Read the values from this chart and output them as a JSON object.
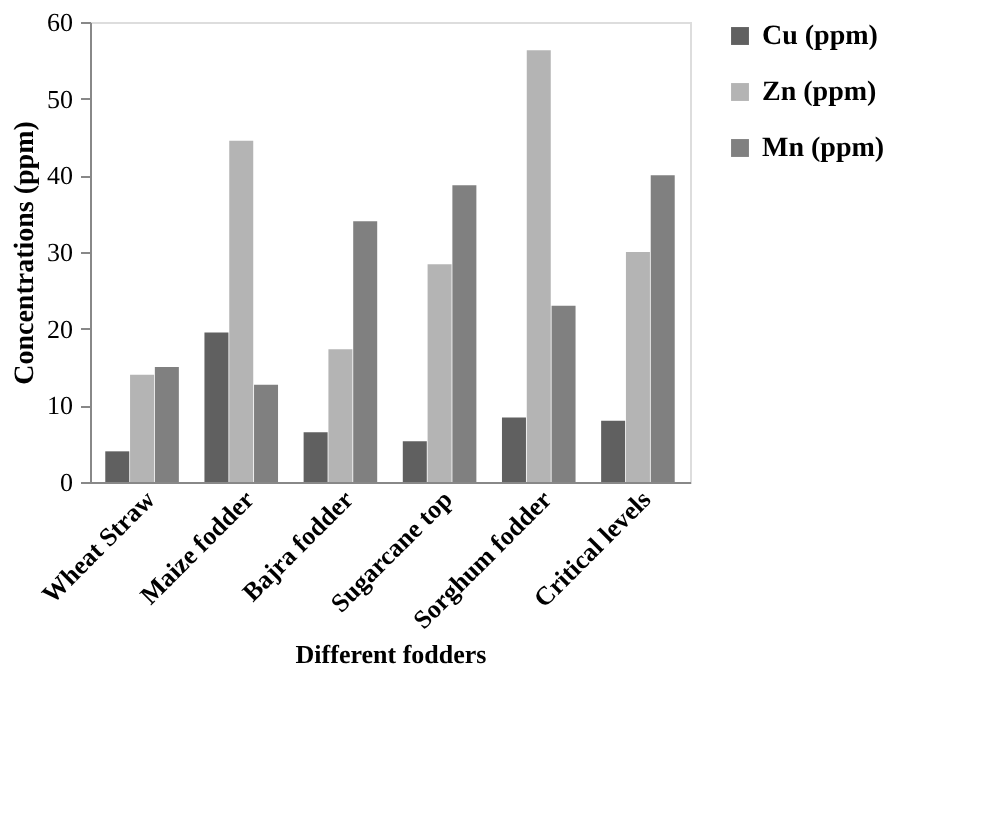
{
  "chart_data": {
    "type": "bar",
    "xlabel": "Different fodders",
    "ylabel": "Concentrations (ppm)",
    "categories": [
      "Wheat Straw",
      "Maize fodder",
      "Bajra fodder",
      "Sugarcane top",
      "Sorghum fodder",
      "Critical levels"
    ],
    "series": [
      {
        "name": "Cu (ppm)",
        "color": "#606060",
        "values": [
          4,
          19.5,
          6.5,
          5.3,
          8.4,
          8
        ]
      },
      {
        "name": "Zn (ppm)",
        "color": "#b4b4b4",
        "values": [
          14,
          44.5,
          17.3,
          28.4,
          56.3,
          30
        ]
      },
      {
        "name": "Mn (ppm)",
        "color": "#808080",
        "values": [
          15,
          12.7,
          34,
          38.7,
          23,
          40
        ]
      }
    ],
    "ylim": [
      0,
      60
    ],
    "yticks": [
      0,
      10,
      20,
      30,
      40,
      50,
      60
    ],
    "grid": false,
    "legend": "right"
  }
}
